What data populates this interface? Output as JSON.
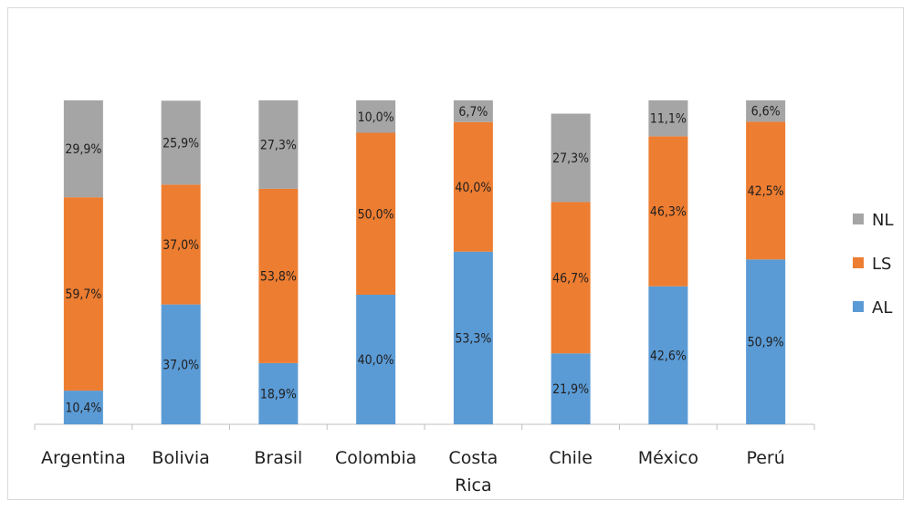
{
  "chart_data": {
    "type": "bar",
    "stacked": true,
    "normalized": true,
    "categories": [
      "Argentina",
      "Bolivia",
      "Brasil",
      "Colombia",
      "Costa Rica",
      "Chile",
      "México",
      "Perú"
    ],
    "series": [
      {
        "name": "AL",
        "color": "#5b9bd5",
        "values": [
          10.4,
          37.0,
          18.9,
          40.0,
          53.3,
          21.9,
          42.6,
          50.9
        ],
        "labels": [
          "10,4%",
          "37,0%",
          "18,9%",
          "40,0%",
          "53,3%",
          "21,9%",
          "42,6%",
          "50,9%"
        ]
      },
      {
        "name": "LS",
        "color": "#ed7d31",
        "values": [
          59.7,
          37.0,
          53.8,
          50.0,
          40.0,
          46.7,
          46.3,
          42.5
        ],
        "labels": [
          "59,7%",
          "37,0%",
          "53,8%",
          "50,0%",
          "40,0%",
          "46,7%",
          "46,3%",
          "42,5%"
        ]
      },
      {
        "name": "NL",
        "color": "#a5a5a5",
        "values": [
          29.9,
          25.9,
          27.3,
          10.0,
          6.7,
          27.3,
          11.1,
          6.6
        ],
        "labels": [
          "29,9%",
          "25,9%",
          "27,3%",
          "10,0%",
          "6,7%",
          "27,3%",
          "11,1%",
          "6,6%"
        ]
      }
    ],
    "legend": {
      "position": "right",
      "order": [
        "NL",
        "LS",
        "AL"
      ]
    },
    "xlabel": "",
    "ylabel": "",
    "title": "",
    "grid": false
  }
}
